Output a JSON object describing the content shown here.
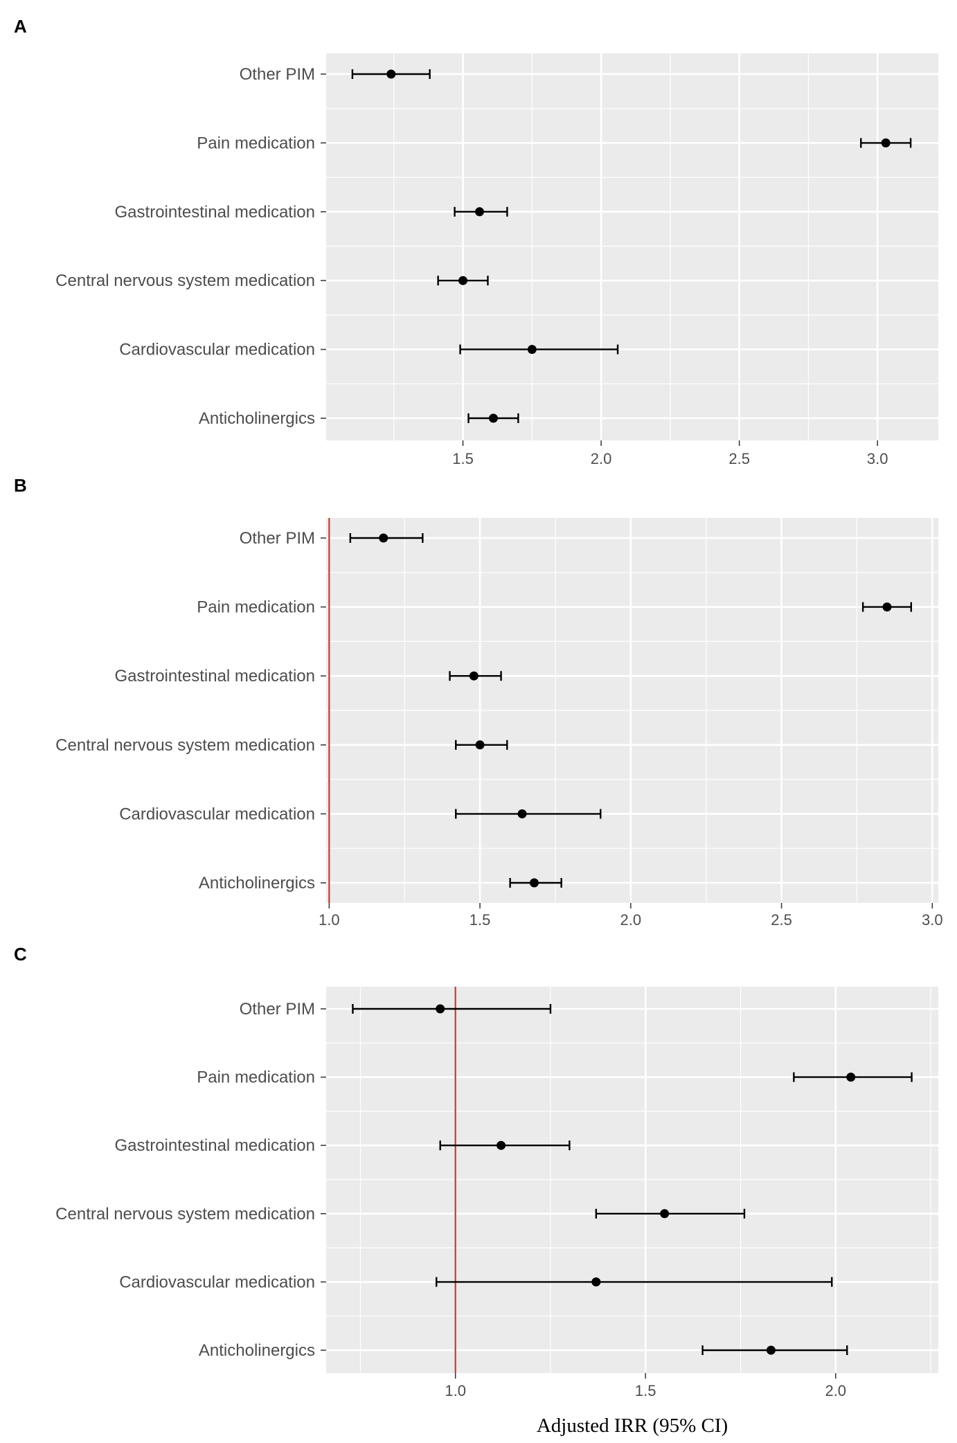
{
  "chart_data": [
    {
      "type": "forest",
      "panel": "A",
      "categories": [
        "Other PIM",
        "Pain medication",
        "Gastrointestinal medication",
        "Central nervous system medication",
        "Cardiovascular medication",
        "Anticholinergics"
      ],
      "estimate": [
        1.24,
        3.03,
        1.56,
        1.5,
        1.75,
        1.61
      ],
      "lower": [
        1.1,
        2.94,
        1.47,
        1.41,
        1.49,
        1.52
      ],
      "upper": [
        1.38,
        3.12,
        1.66,
        1.59,
        2.06,
        1.7
      ],
      "ticks": [
        1.5,
        2.0,
        2.5,
        3.0
      ],
      "tick_labels": [
        "1.5",
        "2.0",
        "2.5",
        "3.0"
      ],
      "xlim": [
        1.005,
        3.22
      ],
      "reference_line": null,
      "xlabel": ""
    },
    {
      "type": "forest",
      "panel": "B",
      "categories": [
        "Other PIM",
        "Pain medication",
        "Gastrointestinal medication",
        "Central nervous system medication",
        "Cardiovascular medication",
        "Anticholinergics"
      ],
      "estimate": [
        1.18,
        2.85,
        1.48,
        1.5,
        1.64,
        1.68
      ],
      "lower": [
        1.07,
        2.77,
        1.4,
        1.42,
        1.42,
        1.6
      ],
      "upper": [
        1.31,
        2.93,
        1.57,
        1.59,
        1.9,
        1.77
      ],
      "ticks": [
        1.0,
        1.5,
        2.0,
        2.5,
        3.0
      ],
      "tick_labels": [
        "1.0",
        "1.5",
        "2.0",
        "2.5",
        "3.0"
      ],
      "xlim": [
        0.99,
        3.02
      ],
      "reference_line": 1.0,
      "xlabel": ""
    },
    {
      "type": "forest",
      "panel": "C",
      "categories": [
        "Other PIM",
        "Pain medication",
        "Gastrointestinal medication",
        "Central nervous system medication",
        "Cardiovascular medication",
        "Anticholinergics"
      ],
      "estimate": [
        0.96,
        2.04,
        1.12,
        1.55,
        1.37,
        1.83
      ],
      "lower": [
        0.73,
        1.89,
        0.96,
        1.37,
        0.95,
        1.65
      ],
      "upper": [
        1.25,
        2.2,
        1.3,
        1.76,
        1.99,
        2.03
      ],
      "ticks": [
        1.0,
        1.5,
        2.0
      ],
      "tick_labels": [
        "1.0",
        "1.5",
        "2.0"
      ],
      "xlim": [
        0.66,
        2.27
      ],
      "reference_line": 1.0,
      "xlabel": "Adjusted IRR (95% CI)"
    }
  ],
  "colors": {
    "panel_background": "#ebebeb",
    "grid": "#ffffff",
    "point": "#000000",
    "reference_line": "#c0392b"
  }
}
